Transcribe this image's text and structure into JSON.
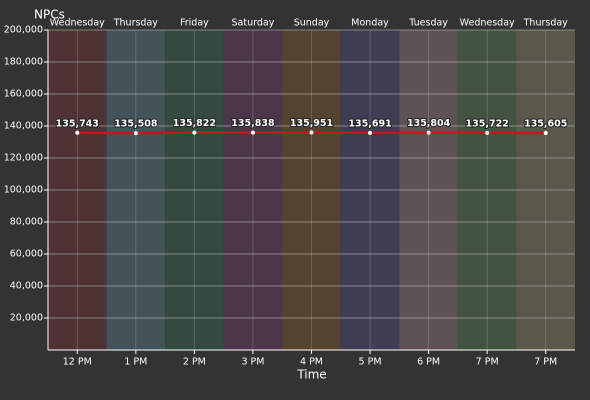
{
  "chart_data": {
    "type": "line",
    "y_label": "NPCs",
    "x_label": "Time",
    "categories": [
      "12 PM",
      "1 PM",
      "2 PM",
      "3 PM",
      "4 PM",
      "5 PM",
      "6 PM",
      "7 PM",
      "7 PM"
    ],
    "bands": [
      "Wednesday",
      "Thursday",
      "Friday",
      "Saturday",
      "Sunday",
      "Monday",
      "Tuesday",
      "Wednesday",
      "Thursday"
    ],
    "band_colors": [
      "#4e3234",
      "#44525a",
      "#344a3f",
      "#4b3749",
      "#54432f",
      "#3f3d53",
      "#5e5254",
      "#435342",
      "#59584a"
    ],
    "series": [
      {
        "name": "NPCs",
        "color": "#c8161e",
        "values": [
          135743,
          135508,
          135822,
          135838,
          135951,
          135691,
          135804,
          135722,
          135605
        ],
        "value_labels": [
          "135,743",
          "135,508",
          "135,822",
          "135,838",
          "135,951",
          "135,691",
          "135,804",
          "135,722",
          "135,605"
        ]
      }
    ],
    "ylim": [
      0,
      200000
    ],
    "yticks": [
      {
        "value": 20000,
        "label": "20,000"
      },
      {
        "value": 40000,
        "label": "40,000"
      },
      {
        "value": 60000,
        "label": "60,000"
      },
      {
        "value": 80000,
        "label": "80,000"
      },
      {
        "value": 100000,
        "label": "100,000"
      },
      {
        "value": 120000,
        "label": "120,000"
      },
      {
        "value": 140000,
        "label": "140,000"
      },
      {
        "value": 160000,
        "label": "160,000"
      },
      {
        "value": 180000,
        "label": "180,000"
      },
      {
        "value": 200000,
        "label": "200,000"
      }
    ],
    "grid": true
  }
}
